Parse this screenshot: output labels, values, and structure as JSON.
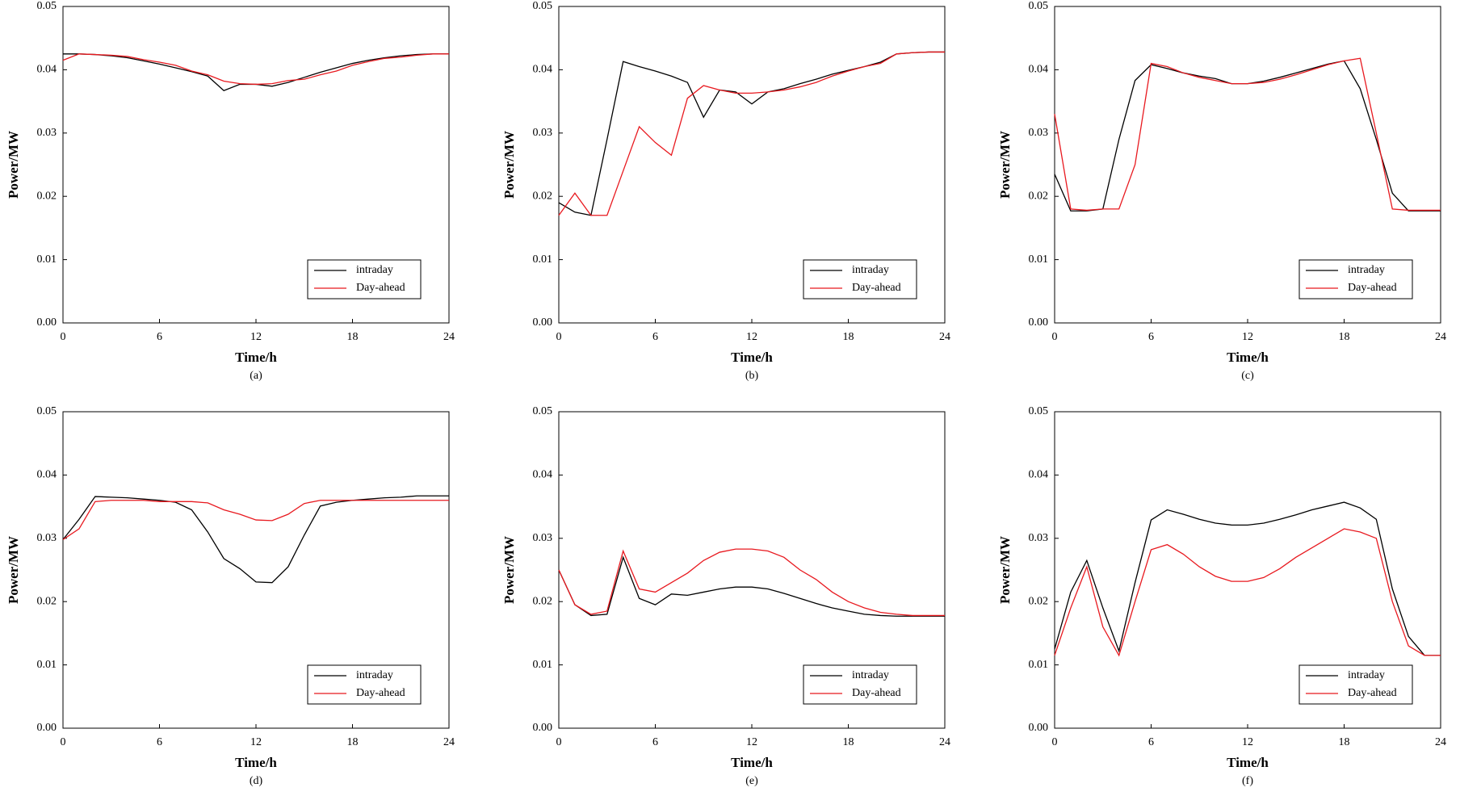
{
  "chart_data": [
    {
      "type": "line",
      "caption": "(a)",
      "xlabel": "Time/h",
      "ylabel": "Power/MW",
      "x": [
        0,
        1,
        2,
        3,
        4,
        5,
        6,
        7,
        8,
        9,
        10,
        11,
        12,
        13,
        14,
        15,
        16,
        17,
        18,
        19,
        20,
        21,
        22,
        23,
        24
      ],
      "series": [
        {
          "name": "intraday",
          "color": "#000000",
          "values": [
            0.0425,
            0.0425,
            0.0424,
            0.0422,
            0.0419,
            0.0414,
            0.0409,
            0.0403,
            0.0397,
            0.039,
            0.0367,
            0.0377,
            0.0377,
            0.0374,
            0.038,
            0.0388,
            0.0396,
            0.0403,
            0.041,
            0.0415,
            0.0419,
            0.0422,
            0.0424,
            0.0425,
            0.0425
          ]
        },
        {
          "name": "Day-ahead",
          "color": "#e8191f",
          "values": [
            0.0415,
            0.0425,
            0.0424,
            0.0423,
            0.0421,
            0.0416,
            0.0412,
            0.0407,
            0.0398,
            0.0392,
            0.0382,
            0.0378,
            0.0377,
            0.0378,
            0.0383,
            0.0385,
            0.0392,
            0.0398,
            0.0407,
            0.0413,
            0.0418,
            0.042,
            0.0423,
            0.0425,
            0.0425
          ]
        }
      ],
      "xlim": [
        0,
        24
      ],
      "xticks": [
        0,
        6,
        12,
        18,
        24
      ],
      "ylim": [
        0,
        0.05
      ],
      "yticks": [
        {
          "value": 0,
          "label": "0.00"
        },
        0.01,
        0.02,
        0.03,
        0.04,
        0.05
      ],
      "legend": "lower right"
    },
    {
      "type": "line",
      "caption": "(b)",
      "xlabel": "Time/h",
      "ylabel": "Power/MW",
      "x": [
        0,
        1,
        2,
        3,
        4,
        5,
        6,
        7,
        8,
        9,
        10,
        11,
        12,
        13,
        14,
        15,
        16,
        17,
        18,
        19,
        20,
        21,
        22,
        23,
        24
      ],
      "series": [
        {
          "name": "intraday",
          "color": "#000000",
          "values": [
            0.019,
            0.0175,
            0.017,
            0.029,
            0.0413,
            0.0405,
            0.0398,
            0.039,
            0.038,
            0.0325,
            0.0368,
            0.0365,
            0.0346,
            0.0365,
            0.037,
            0.0378,
            0.0385,
            0.0393,
            0.0399,
            0.0405,
            0.0412,
            0.0425,
            0.0427,
            0.0428,
            0.0428
          ]
        },
        {
          "name": "Day-ahead",
          "color": "#e8191f",
          "values": [
            0.017,
            0.0205,
            0.017,
            0.017,
            0.024,
            0.031,
            0.0285,
            0.0265,
            0.0355,
            0.0375,
            0.0368,
            0.0363,
            0.0363,
            0.0365,
            0.0368,
            0.0373,
            0.038,
            0.039,
            0.0398,
            0.0405,
            0.041,
            0.0425,
            0.0427,
            0.0428,
            0.0428
          ]
        }
      ],
      "xlim": [
        0,
        24
      ],
      "xticks": [
        0,
        6,
        12,
        18,
        24
      ],
      "ylim": [
        0,
        0.05
      ],
      "yticks": [
        {
          "value": 0,
          "label": "0.00"
        },
        0.01,
        0.02,
        0.03,
        0.04,
        0.05
      ],
      "legend": "lower right"
    },
    {
      "type": "line",
      "caption": "(c)",
      "xlabel": "Time/h",
      "ylabel": "Power/MW",
      "x": [
        0,
        1,
        2,
        3,
        4,
        5,
        6,
        7,
        8,
        9,
        10,
        11,
        12,
        13,
        14,
        15,
        16,
        17,
        18,
        19,
        20,
        21,
        22,
        23,
        24
      ],
      "series": [
        {
          "name": "intraday",
          "color": "#000000",
          "values": [
            0.0235,
            0.0177,
            0.0177,
            0.018,
            0.029,
            0.0383,
            0.0408,
            0.0402,
            0.0395,
            0.039,
            0.0386,
            0.0378,
            0.0378,
            0.0382,
            0.0388,
            0.0395,
            0.0402,
            0.0409,
            0.0414,
            0.037,
            0.029,
            0.0205,
            0.0177,
            0.0177,
            0.0177
          ]
        },
        {
          "name": "Day-ahead",
          "color": "#e8191f",
          "values": [
            0.033,
            0.018,
            0.0178,
            0.018,
            0.018,
            0.025,
            0.041,
            0.0405,
            0.0395,
            0.0388,
            0.0383,
            0.0378,
            0.0378,
            0.038,
            0.0385,
            0.0392,
            0.04,
            0.0408,
            0.0414,
            0.0418,
            0.03,
            0.018,
            0.0178,
            0.0178,
            0.0178
          ]
        }
      ],
      "xlim": [
        0,
        24
      ],
      "xticks": [
        0,
        6,
        12,
        18,
        24
      ],
      "ylim": [
        0,
        0.05
      ],
      "yticks": [
        {
          "value": 0,
          "label": "0.00"
        },
        0.01,
        0.02,
        0.03,
        0.04,
        0.05
      ],
      "legend": "lower right"
    },
    {
      "type": "line",
      "caption": "(d)",
      "xlabel": "Time/h",
      "ylabel": "Power/MW",
      "x": [
        0,
        1,
        2,
        3,
        4,
        5,
        6,
        7,
        8,
        9,
        10,
        11,
        12,
        13,
        14,
        15,
        16,
        17,
        18,
        19,
        20,
        21,
        22,
        23,
        24
      ],
      "series": [
        {
          "name": "intraday",
          "color": "#000000",
          "values": [
            0.0298,
            0.033,
            0.0366,
            0.0365,
            0.0364,
            0.0362,
            0.036,
            0.0357,
            0.0345,
            0.031,
            0.0268,
            0.0252,
            0.0231,
            0.023,
            0.0255,
            0.0305,
            0.0351,
            0.0357,
            0.036,
            0.0362,
            0.0364,
            0.0365,
            0.0367,
            0.0367,
            0.0367
          ]
        },
        {
          "name": "Day-ahead",
          "color": "#e8191f",
          "values": [
            0.0298,
            0.0315,
            0.0358,
            0.036,
            0.036,
            0.036,
            0.0358,
            0.0358,
            0.0358,
            0.0356,
            0.0345,
            0.0338,
            0.0329,
            0.0328,
            0.0338,
            0.0355,
            0.036,
            0.036,
            0.036,
            0.036,
            0.036,
            0.036,
            0.036,
            0.036,
            0.036
          ]
        }
      ],
      "xlim": [
        0,
        24
      ],
      "xticks": [
        0,
        6,
        12,
        18,
        24
      ],
      "ylim": [
        0,
        0.05
      ],
      "yticks": [
        {
          "value": 0,
          "label": "0.00"
        },
        0.01,
        0.02,
        0.03,
        0.04,
        0.05
      ],
      "legend": "lower right"
    },
    {
      "type": "line",
      "caption": "(e)",
      "xlabel": "Time/h",
      "ylabel": "Power/MW",
      "x": [
        0,
        1,
        2,
        3,
        4,
        5,
        6,
        7,
        8,
        9,
        10,
        11,
        12,
        13,
        14,
        15,
        16,
        17,
        18,
        19,
        20,
        21,
        22,
        23,
        24
      ],
      "series": [
        {
          "name": "intraday",
          "color": "#000000",
          "values": [
            0.025,
            0.0195,
            0.0178,
            0.018,
            0.027,
            0.0205,
            0.0195,
            0.0212,
            0.021,
            0.0215,
            0.022,
            0.0223,
            0.0223,
            0.022,
            0.0213,
            0.0205,
            0.0197,
            0.019,
            0.0185,
            0.018,
            0.0178,
            0.0177,
            0.0177,
            0.0177,
            0.0177
          ]
        },
        {
          "name": "Day-ahead",
          "color": "#e8191f",
          "values": [
            0.025,
            0.0195,
            0.018,
            0.0185,
            0.028,
            0.022,
            0.0215,
            0.023,
            0.0245,
            0.0265,
            0.0278,
            0.0283,
            0.0283,
            0.028,
            0.027,
            0.025,
            0.0235,
            0.0215,
            0.02,
            0.019,
            0.0183,
            0.018,
            0.0178,
            0.0178,
            0.0178
          ]
        }
      ],
      "xlim": [
        0,
        24
      ],
      "xticks": [
        0,
        6,
        12,
        18,
        24
      ],
      "ylim": [
        0,
        0.05
      ],
      "yticks": [
        {
          "value": 0,
          "label": "0.00"
        },
        0.01,
        0.02,
        0.03,
        0.04,
        0.05
      ],
      "legend": "lower right"
    },
    {
      "type": "line",
      "caption": "(f)",
      "xlabel": "Time/h",
      "ylabel": "Power/MW",
      "x": [
        0,
        1,
        2,
        3,
        4,
        5,
        6,
        7,
        8,
        9,
        10,
        11,
        12,
        13,
        14,
        15,
        16,
        17,
        18,
        19,
        20,
        21,
        22,
        23,
        24
      ],
      "series": [
        {
          "name": "intraday",
          "color": "#000000",
          "values": [
            0.0125,
            0.0215,
            0.0265,
            0.019,
            0.0122,
            0.023,
            0.0329,
            0.0345,
            0.0338,
            0.033,
            0.0324,
            0.0321,
            0.0321,
            0.0324,
            0.033,
            0.0337,
            0.0345,
            0.0351,
            0.0357,
            0.0348,
            0.033,
            0.022,
            0.0145,
            0.0115,
            0.0115
          ]
        },
        {
          "name": "Day-ahead",
          "color": "#e8191f",
          "values": [
            0.0115,
            0.019,
            0.0255,
            0.016,
            0.0115,
            0.02,
            0.0282,
            0.029,
            0.0275,
            0.0255,
            0.024,
            0.0232,
            0.0232,
            0.0238,
            0.0252,
            0.027,
            0.0285,
            0.03,
            0.0315,
            0.031,
            0.03,
            0.02,
            0.013,
            0.0115,
            0.0115
          ]
        }
      ],
      "xlim": [
        0,
        24
      ],
      "xticks": [
        0,
        6,
        12,
        18,
        24
      ],
      "ylim": [
        0,
        0.05
      ],
      "yticks": [
        {
          "value": 0,
          "label": "0.00"
        },
        0.01,
        0.02,
        0.03,
        0.04,
        0.05
      ],
      "legend": "lower right"
    }
  ]
}
